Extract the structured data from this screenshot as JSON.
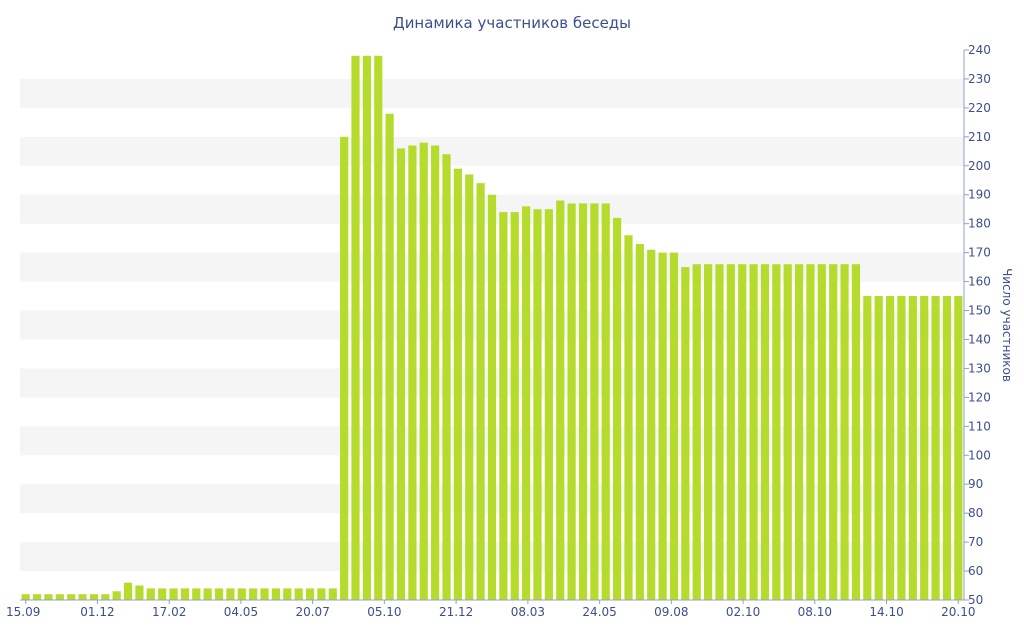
{
  "chart_data": {
    "type": "bar",
    "title": "Динамика участников беседы",
    "xlabel": "",
    "ylabel": "Число участников",
    "y_axis_side": "right",
    "ylim": [
      50,
      240
    ],
    "yticks": [
      50,
      60,
      70,
      80,
      90,
      100,
      110,
      120,
      130,
      140,
      150,
      160,
      170,
      180,
      190,
      200,
      210,
      220,
      230,
      240
    ],
    "x_tick_labels": [
      "15.09",
      "01.12",
      "17.02",
      "04.05",
      "20.07",
      "05.10",
      "21.12",
      "08.03",
      "24.05",
      "09.08",
      "02.10",
      "08.10",
      "14.10",
      "20.10"
    ],
    "bar_color": "#b5dc2c",
    "grid": "alternating horizontal bands",
    "values": [
      52,
      52,
      52,
      52,
      52,
      52,
      52,
      52,
      53,
      56,
      55,
      54,
      54,
      54,
      54,
      54,
      54,
      54,
      54,
      54,
      54,
      54,
      54,
      54,
      54,
      54,
      54,
      54,
      210,
      238,
      238,
      238,
      218,
      206,
      207,
      208,
      207,
      204,
      199,
      197,
      194,
      190,
      184,
      184,
      186,
      185,
      185,
      188,
      187,
      187,
      187,
      187,
      182,
      176,
      173,
      171,
      170,
      170,
      165,
      166,
      166,
      166,
      166,
      166,
      166,
      166,
      166,
      166,
      166,
      166,
      166,
      166,
      166,
      166,
      155,
      155,
      155,
      155,
      155,
      155,
      155,
      155,
      155
    ]
  }
}
